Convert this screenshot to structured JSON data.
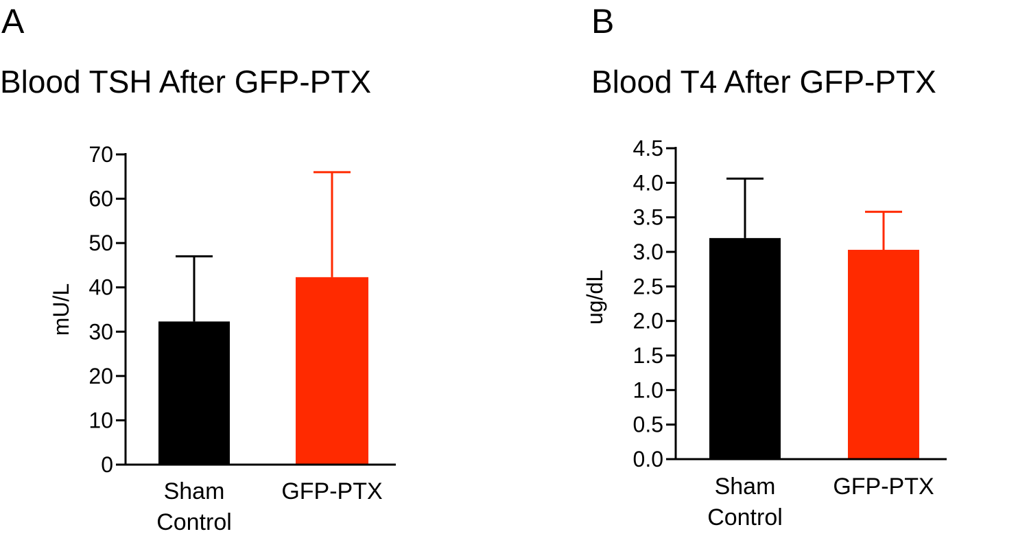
{
  "chart_data": [
    {
      "type": "bar",
      "panel_label": "A",
      "title": "Blood TSH After GFP-PTX",
      "ylabel": "mU/L",
      "xlabel": "",
      "ylim": [
        0,
        70
      ],
      "yticks": [
        "0",
        "10",
        "20",
        "30",
        "40",
        "50",
        "60",
        "70"
      ],
      "ytick_values": [
        0,
        10,
        20,
        30,
        40,
        50,
        60,
        70
      ],
      "categories": [
        [
          "Sham",
          "Control"
        ],
        [
          "GFP-PTX"
        ]
      ],
      "values": [
        32.3,
        42.3
      ],
      "error_upper": [
        47.0,
        66.0
      ],
      "colors": [
        "#000000",
        "#ff2a00"
      ],
      "grid": false
    },
    {
      "type": "bar",
      "panel_label": "B",
      "title": "Blood T4 After GFP-PTX",
      "ylabel": "ug/dL",
      "xlabel": "",
      "ylim": [
        0,
        4.5
      ],
      "yticks": [
        "0.0",
        "0.5",
        "1.0",
        "1.5",
        "2.0",
        "2.5",
        "3.0",
        "3.5",
        "4.0",
        "4.5"
      ],
      "ytick_values": [
        0,
        0.5,
        1.0,
        1.5,
        2.0,
        2.5,
        3.0,
        3.5,
        4.0,
        4.5
      ],
      "categories": [
        [
          "Sham",
          "Control"
        ],
        [
          "GFP-PTX"
        ]
      ],
      "values": [
        3.2,
        3.03
      ],
      "error_upper": [
        4.06,
        3.58
      ],
      "colors": [
        "#000000",
        "#ff2a00"
      ],
      "grid": false
    }
  ]
}
